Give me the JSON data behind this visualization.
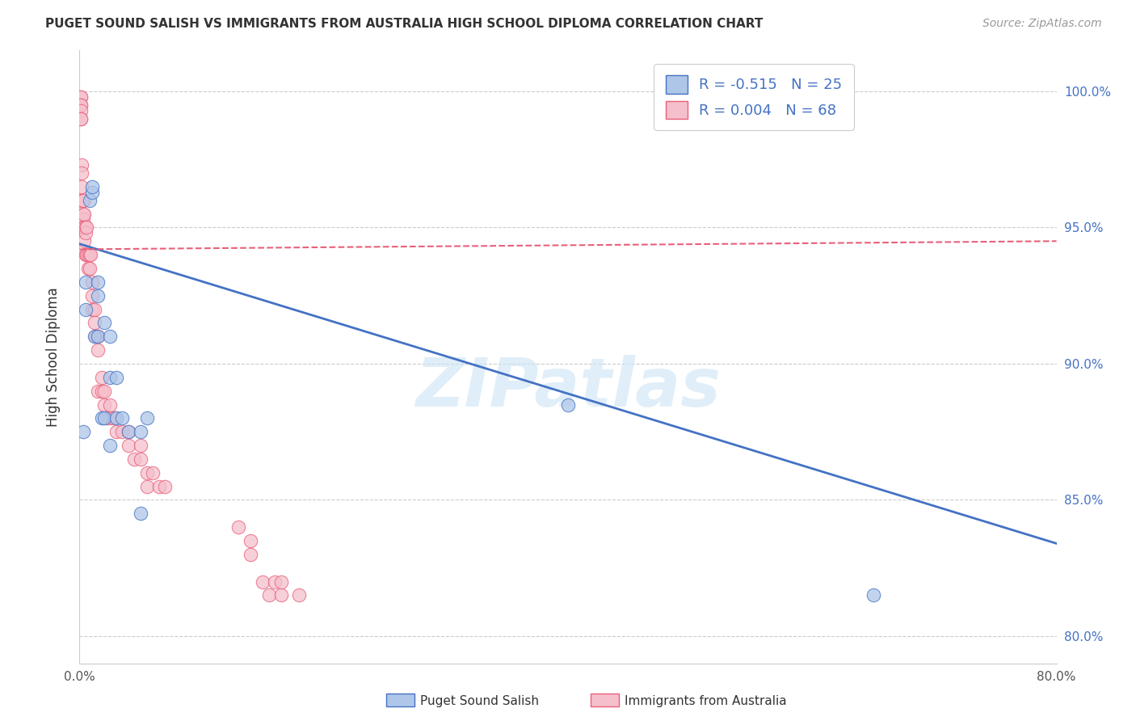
{
  "title": "PUGET SOUND SALISH VS IMMIGRANTS FROM AUSTRALIA HIGH SCHOOL DIPLOMA CORRELATION CHART",
  "source": "Source: ZipAtlas.com",
  "ylabel": "High School Diploma",
  "blue_color": "#aec6e8",
  "pink_color": "#f5bfcc",
  "blue_line_color": "#4472c4",
  "pink_line_color": "#e8607a",
  "xlim": [
    0.0,
    80.0
  ],
  "ylim": [
    79.0,
    101.5
  ],
  "xticks": [
    0.0,
    10.0,
    20.0,
    30.0,
    40.0,
    50.0,
    60.0,
    70.0,
    80.0
  ],
  "yticks": [
    80.0,
    85.0,
    90.0,
    95.0,
    100.0
  ],
  "watermark_text": "ZIPatlas",
  "blue_scatter_x": [
    0.3,
    0.5,
    0.5,
    0.8,
    1.0,
    1.0,
    1.2,
    1.5,
    1.5,
    1.5,
    1.8,
    2.0,
    2.0,
    2.5,
    2.5,
    2.5,
    3.0,
    3.0,
    3.5,
    4.0,
    5.0,
    5.0,
    5.5,
    40.0,
    65.0
  ],
  "blue_scatter_y": [
    87.5,
    93.0,
    92.0,
    96.0,
    96.3,
    96.5,
    91.0,
    91.0,
    93.0,
    92.5,
    88.0,
    88.0,
    91.5,
    91.0,
    89.5,
    87.0,
    89.5,
    88.0,
    88.0,
    87.5,
    87.5,
    84.5,
    88.0,
    88.5,
    81.5
  ],
  "pink_scatter_x": [
    0.1,
    0.1,
    0.1,
    0.1,
    0.1,
    0.1,
    0.1,
    0.2,
    0.2,
    0.2,
    0.2,
    0.2,
    0.3,
    0.3,
    0.3,
    0.3,
    0.3,
    0.4,
    0.4,
    0.4,
    0.5,
    0.5,
    0.5,
    0.6,
    0.6,
    0.7,
    0.7,
    0.8,
    0.8,
    0.9,
    1.0,
    1.0,
    1.0,
    1.2,
    1.2,
    1.3,
    1.5,
    1.5,
    1.5,
    1.8,
    1.8,
    2.0,
    2.0,
    2.2,
    2.5,
    2.5,
    2.8,
    3.0,
    3.5,
    4.0,
    4.0,
    4.5,
    5.0,
    5.0,
    5.5,
    5.5,
    6.0,
    6.5,
    7.0,
    13.0,
    14.0,
    14.0,
    15.0,
    15.5,
    16.0,
    16.5,
    16.5,
    18.0
  ],
  "pink_scatter_y": [
    99.8,
    99.8,
    99.5,
    99.5,
    99.3,
    99.0,
    99.0,
    97.3,
    97.0,
    96.5,
    96.0,
    95.0,
    96.0,
    96.0,
    95.5,
    95.3,
    95.0,
    95.5,
    95.0,
    94.5,
    95.0,
    94.8,
    94.0,
    95.0,
    94.0,
    94.0,
    93.5,
    94.0,
    93.5,
    94.0,
    93.0,
    92.5,
    92.0,
    92.0,
    91.5,
    91.0,
    91.0,
    90.5,
    89.0,
    89.5,
    89.0,
    89.0,
    88.5,
    88.0,
    88.5,
    88.0,
    88.0,
    87.5,
    87.5,
    87.5,
    87.0,
    86.5,
    87.0,
    86.5,
    86.0,
    85.5,
    86.0,
    85.5,
    85.5,
    84.0,
    83.5,
    83.0,
    82.0,
    81.5,
    82.0,
    81.5,
    82.0,
    81.5
  ],
  "blue_line_x": [
    0.0,
    80.0
  ],
  "blue_line_y": [
    94.4,
    83.4
  ],
  "pink_line_x": [
    0.0,
    80.0
  ],
  "pink_line_y": [
    94.2,
    94.5
  ],
  "legend_r_blue": "R = -0.515",
  "legend_n_blue": "N = 25",
  "legend_r_pink": "R = 0.004",
  "legend_n_pink": "N = 68",
  "legend_label_blue": "Puget Sound Salish",
  "legend_label_pink": "Immigrants from Australia",
  "figsize": [
    14.06,
    8.92
  ],
  "dpi": 100
}
